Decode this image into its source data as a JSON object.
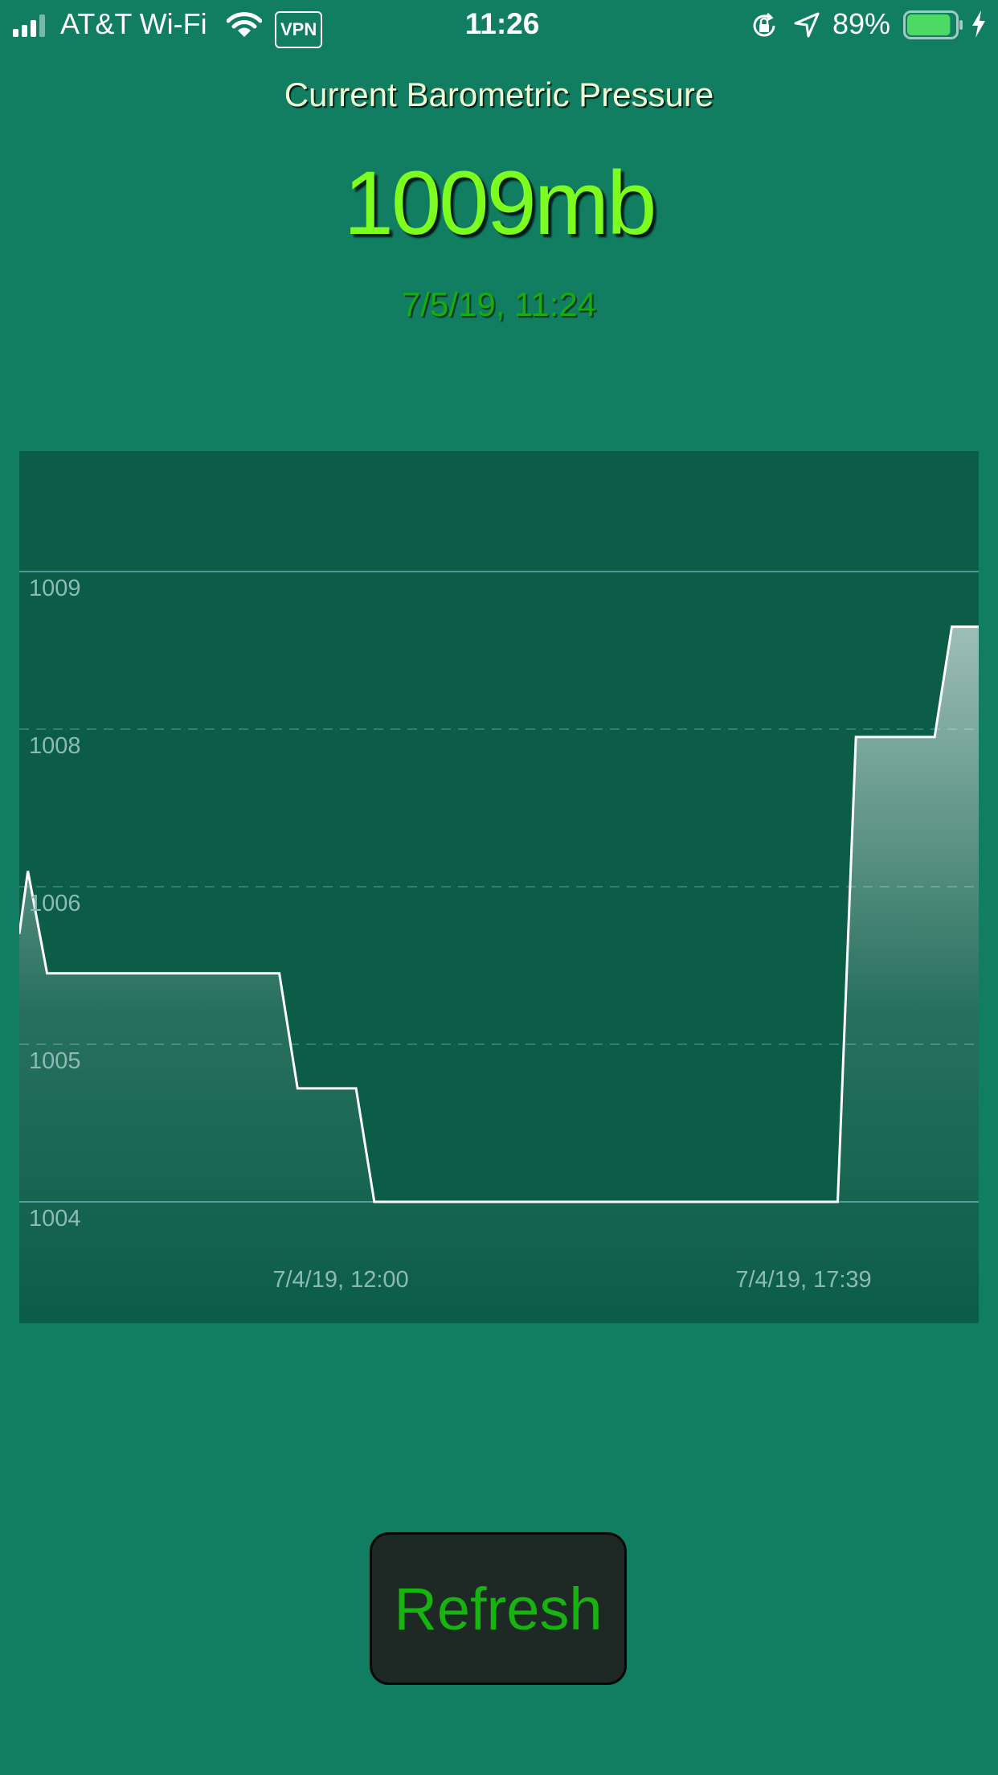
{
  "status_bar": {
    "carrier": "AT&T Wi-Fi",
    "vpn": "VPN",
    "time": "11:26",
    "battery_percent": "89%",
    "battery_level": 0.89,
    "battery_color": "#4cd964"
  },
  "header": {
    "title": "Current Barometric Pressure",
    "pressure": "1009mb",
    "timestamp": "7/5/19, 11:24"
  },
  "chart_data": {
    "type": "area",
    "title": "",
    "xlabel": "",
    "ylabel": "",
    "y_ticks": [
      1009,
      1008,
      1006,
      1005,
      1004
    ],
    "x_tick_labels": [
      "7/4/19, 12:00",
      "7/4/19, 17:39"
    ],
    "grid": true,
    "series": [
      {
        "line_color": "#ffffff",
        "points": [
          [
            0.0,
            1005.7
          ],
          [
            0.009,
            1006.2
          ],
          [
            0.029,
            1005.45
          ],
          [
            0.271,
            1005.45
          ],
          [
            0.29,
            1004.72
          ],
          [
            0.351,
            1004.72
          ],
          [
            0.37,
            1004.0
          ],
          [
            0.853,
            1004.0
          ],
          [
            0.872,
            1007.9
          ],
          [
            0.954,
            1007.9
          ],
          [
            0.972,
            1008.65
          ],
          [
            1.0,
            1008.65
          ]
        ]
      }
    ]
  },
  "refresh_button": {
    "label": "Refresh"
  },
  "colors": {
    "background": "#117e61",
    "chart_panel": "#0b5d48",
    "accent_green": "#7cfd1f",
    "button_text": "#17b40f"
  }
}
